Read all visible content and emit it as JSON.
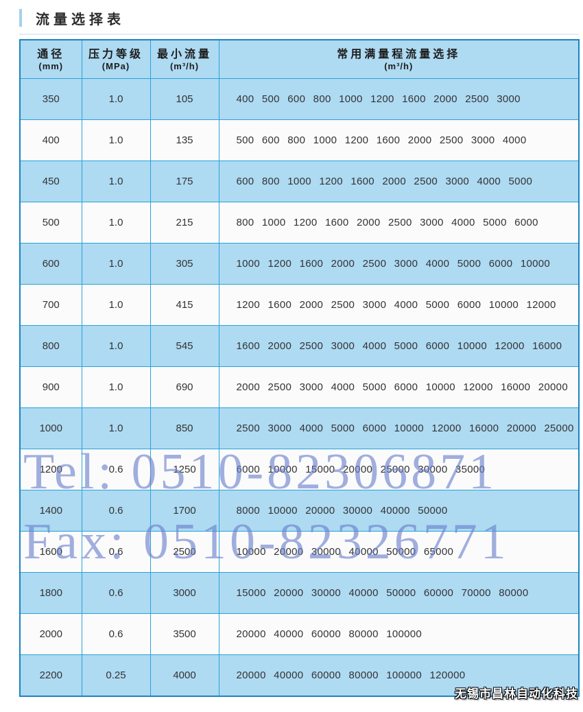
{
  "page": {
    "title": "流量选择表"
  },
  "colors": {
    "row_blue": "#aedaf2",
    "row_white": "#fbfbfb",
    "border_outer": "#1a84c0",
    "border_inner": "#2aa2db",
    "watermark": "#687ecc",
    "title_accent": "#a5d2ea"
  },
  "table": {
    "headers": [
      {
        "line1": "通径",
        "line2": "(mm)"
      },
      {
        "line1": "压力等级",
        "line2": "(MPa)"
      },
      {
        "line1": "最小流量",
        "line2": "(m³/h)"
      },
      {
        "line1": "常用满量程流量选择",
        "line2": "(m³/h)"
      }
    ],
    "rows": [
      {
        "dn": "350",
        "pressure": "1.0",
        "min_flow": "105",
        "full_scale_flows": "400 500 600 800 1000 1200 1600 2000 2500 3000"
      },
      {
        "dn": "400",
        "pressure": "1.0",
        "min_flow": "135",
        "full_scale_flows": "500 600 800 1000 1200 1600 2000 2500 3000 4000"
      },
      {
        "dn": "450",
        "pressure": "1.0",
        "min_flow": "175",
        "full_scale_flows": "600 800 1000 1200 1600 2000 2500 3000 4000 5000"
      },
      {
        "dn": "500",
        "pressure": "1.0",
        "min_flow": "215",
        "full_scale_flows": "800 1000 1200 1600 2000 2500 3000 4000 5000 6000"
      },
      {
        "dn": "600",
        "pressure": "1.0",
        "min_flow": "305",
        "full_scale_flows": "1000 1200 1600 2000 2500 3000 4000 5000 6000 10000"
      },
      {
        "dn": "700",
        "pressure": "1.0",
        "min_flow": "415",
        "full_scale_flows": "1200 1600 2000 2500 3000 4000 5000 6000 10000 12000"
      },
      {
        "dn": "800",
        "pressure": "1.0",
        "min_flow": "545",
        "full_scale_flows": "1600 2000 2500 3000 4000 5000 6000 10000 12000 16000"
      },
      {
        "dn": "900",
        "pressure": "1.0",
        "min_flow": "690",
        "full_scale_flows": "2000 2500 3000 4000 5000 6000 10000 12000 16000 20000"
      },
      {
        "dn": "1000",
        "pressure": "1.0",
        "min_flow": "850",
        "full_scale_flows": "2500 3000 4000 5000 6000 10000 12000 16000 20000 25000"
      },
      {
        "dn": "1200",
        "pressure": "0.6",
        "min_flow": "1250",
        "full_scale_flows": "6000 10000 15000 20000 25000 30000 35000"
      },
      {
        "dn": "1400",
        "pressure": "0.6",
        "min_flow": "1700",
        "full_scale_flows": "8000 10000 20000 30000 40000 50000"
      },
      {
        "dn": "1600",
        "pressure": "0.6",
        "min_flow": "2500",
        "full_scale_flows": "10000 20000 30000 40000 50000 65000"
      },
      {
        "dn": "1800",
        "pressure": "0.6",
        "min_flow": "3000",
        "full_scale_flows": "15000 20000 30000 40000 50000 60000 70000 80000"
      },
      {
        "dn": "2000",
        "pressure": "0.6",
        "min_flow": "3500",
        "full_scale_flows": "20000 40000 60000 80000 100000"
      },
      {
        "dn": "2200",
        "pressure": "0.25",
        "min_flow": "4000",
        "full_scale_flows": "20000 40000 60000 80000 100000 120000"
      }
    ]
  },
  "watermarks": {
    "tel": "Tel: 0510-82306871",
    "fax": "Fax: 0510-82326771"
  },
  "footer": {
    "company": "无锡市昌林自动化科技"
  }
}
